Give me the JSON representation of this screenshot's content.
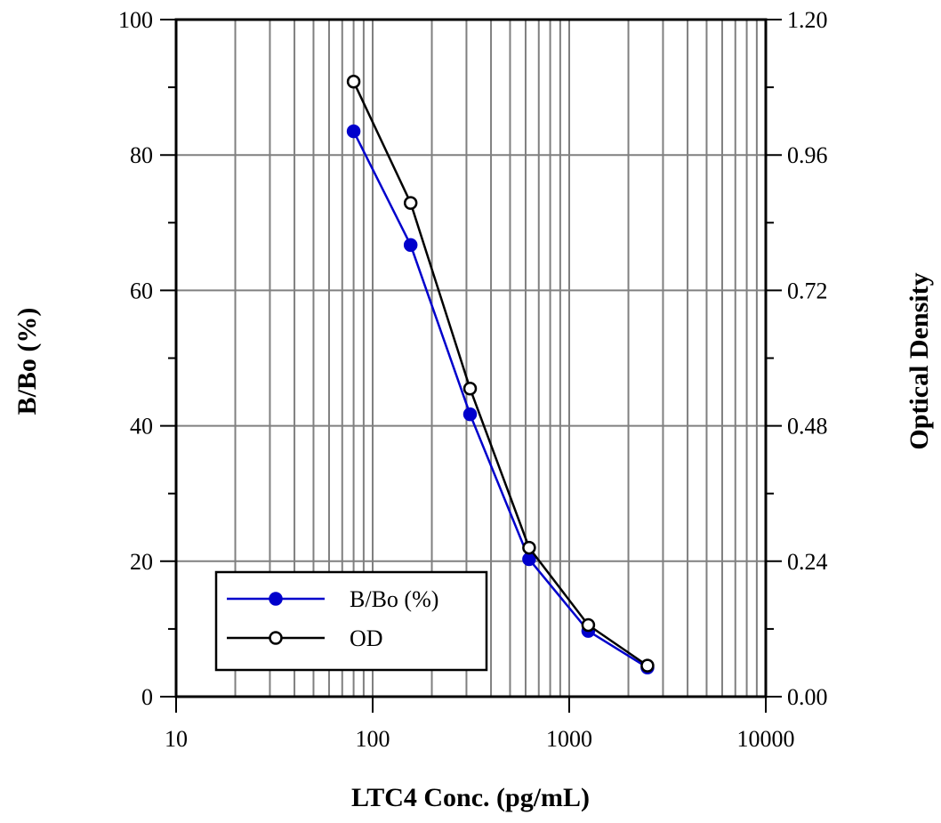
{
  "chart_data": {
    "type": "line",
    "x_scale": "log",
    "xlim": [
      10,
      10000
    ],
    "xlabel": "LTC4 Conc. (pg/mL)",
    "x_ticks": [
      "10",
      "100",
      "1000",
      "10000"
    ],
    "ylabel": "B/Bo (%)",
    "ylim": [
      0,
      100
    ],
    "y_ticks": [
      "0",
      "20",
      "40",
      "60",
      "80",
      "100"
    ],
    "y2label": "Optical Density",
    "y2lim": [
      0,
      1.2
    ],
    "y2_ticks": [
      "0.00",
      "0.24",
      "0.48",
      "0.72",
      "0.96",
      "1.20"
    ],
    "grid": true,
    "legend_position": "bottom-left",
    "series": [
      {
        "name": "B/Bo (%)",
        "axis": "left",
        "color": "#0000cc",
        "marker": "filled-circle",
        "x": [
          80,
          156,
          313,
          625,
          1250,
          2500
        ],
        "y": [
          83.5,
          66.7,
          41.7,
          20.3,
          9.7,
          4.3
        ]
      },
      {
        "name": "OD",
        "axis": "right",
        "color": "#000000",
        "marker": "open-circle",
        "x": [
          80,
          156,
          313,
          625,
          1250,
          2500
        ],
        "y": [
          1.09,
          0.875,
          0.546,
          0.264,
          0.127,
          0.055
        ]
      }
    ]
  }
}
